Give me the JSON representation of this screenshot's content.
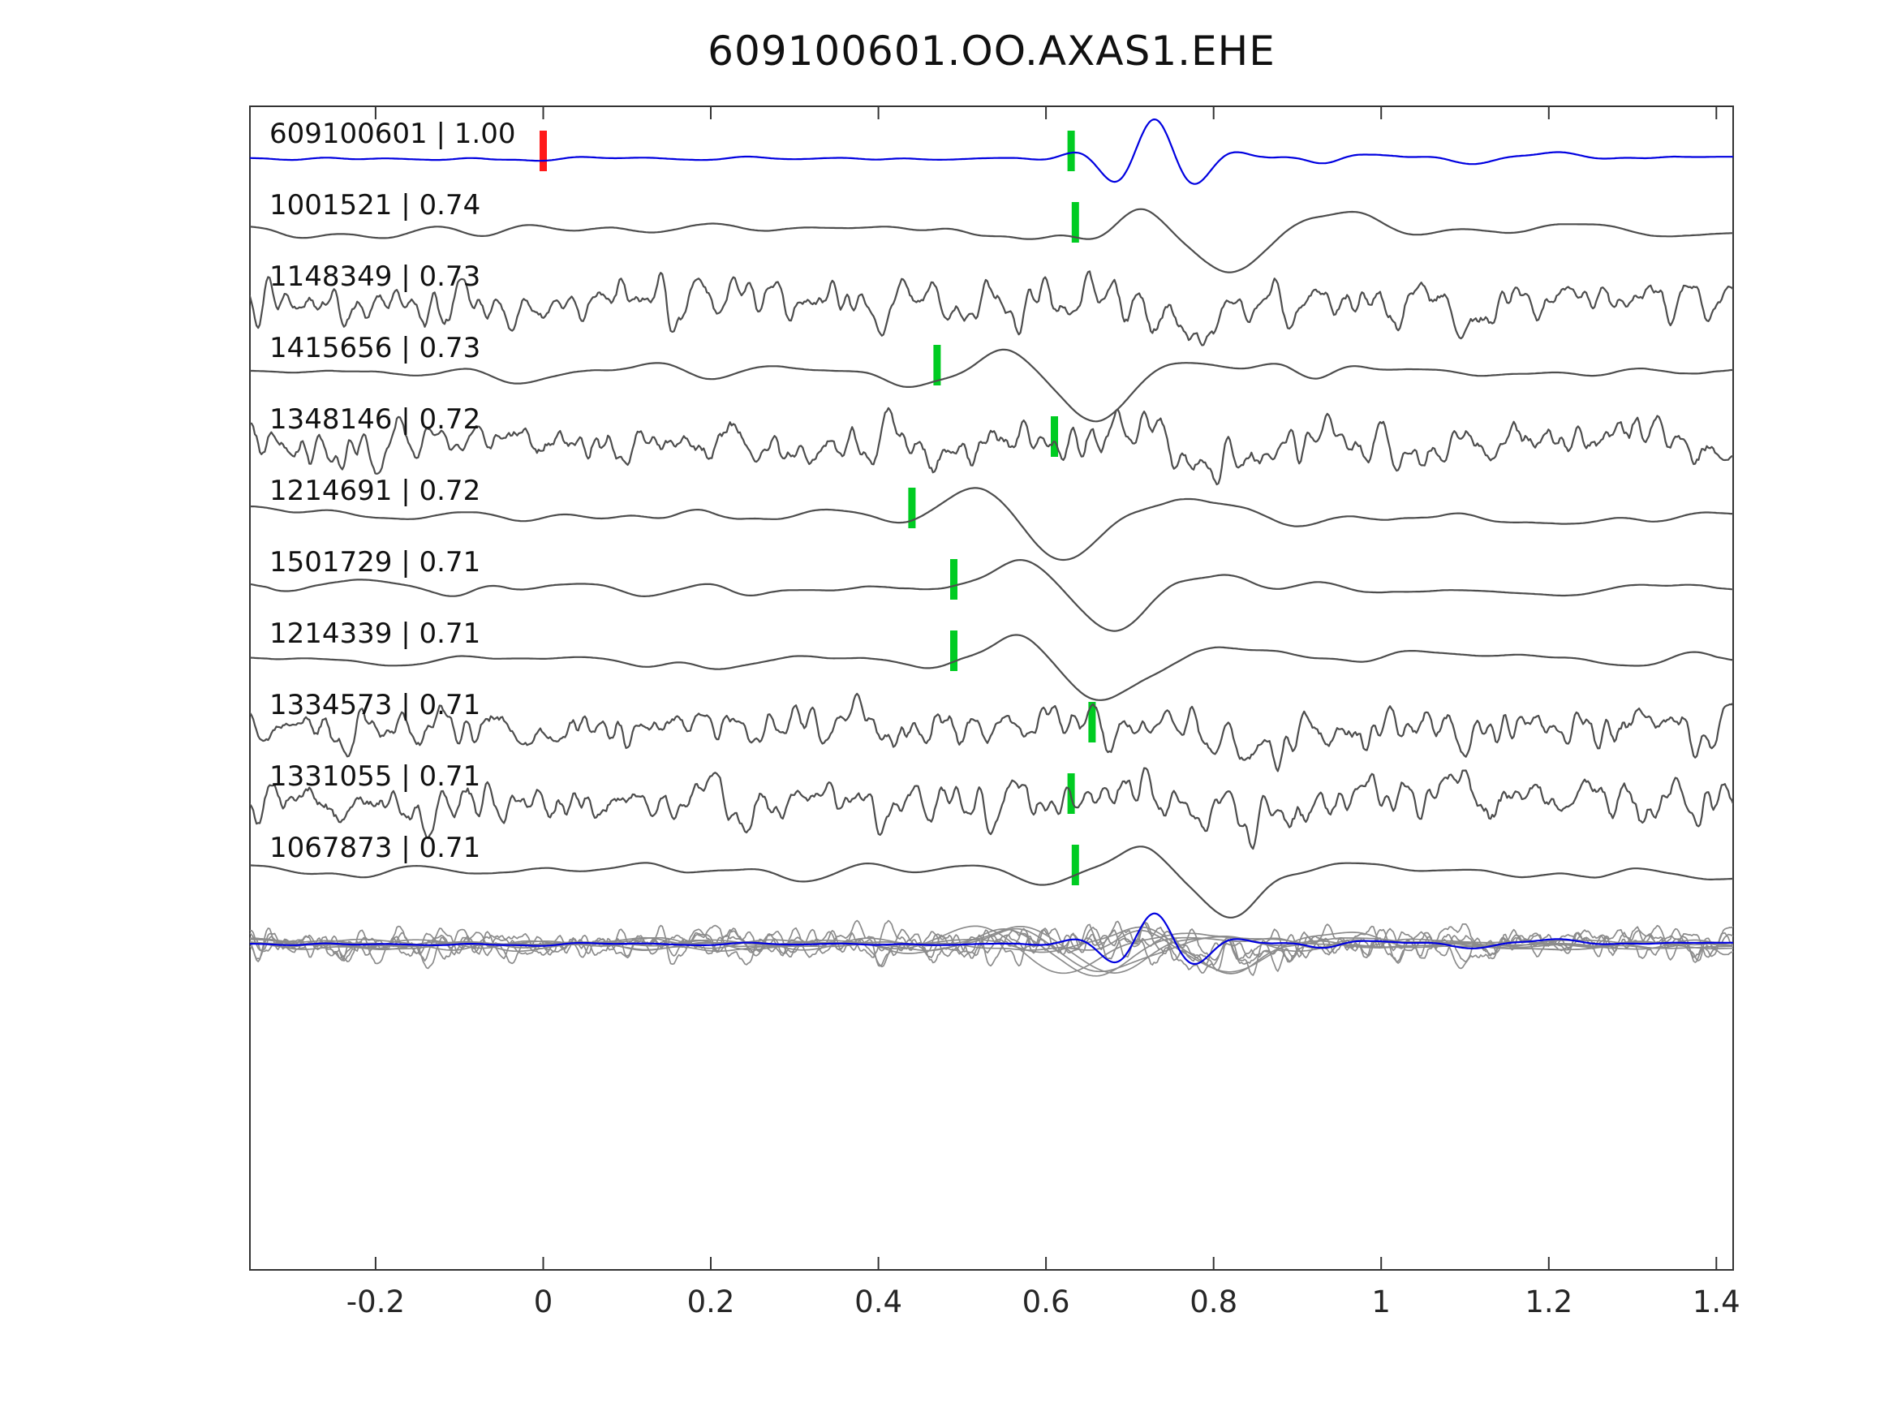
{
  "title": "609100601.OO.AXAS1.EHE",
  "chart_data": {
    "type": "line",
    "subtype": "seismic-waveform-stack",
    "title": "609100601.OO.AXAS1.EHE",
    "xlabel": "",
    "ylabel": "",
    "x_range": [
      -0.35,
      1.42
    ],
    "x_ticks": [
      -0.2,
      0,
      0.2,
      0.4,
      0.6,
      0.8,
      1,
      1.2,
      1.4
    ],
    "x_tick_labels": [
      "-0.2",
      "0",
      "0.2",
      "0.4",
      "0.6",
      "0.8",
      "1",
      "1.2",
      "1.4"
    ],
    "grid": false,
    "legend": null,
    "colors": {
      "reference_trace": "#0000e0",
      "trace": "#4d4d4d",
      "overlay_trace": "#8c8c8c",
      "pick_marker": "#00cc22",
      "reference_marker": "#ff1a1a",
      "spine": "#333333",
      "tick_label": "#262626",
      "trace_label": "#111111",
      "background": "#ffffff"
    },
    "traces": [
      {
        "label": "609100601 | 1.00",
        "event_id": "609100601",
        "correlation": 1.0,
        "role": "reference",
        "character": "reference",
        "pick": 0.63,
        "zero_marker": 0.0,
        "seed": 101
      },
      {
        "label": "1001521 | 0.74",
        "event_id": "1001521",
        "correlation": 0.74,
        "role": "match",
        "character": "smooth",
        "pick": 0.635,
        "zero_marker": null,
        "seed": 202
      },
      {
        "label": "1148349 | 0.73",
        "event_id": "1148349",
        "correlation": 0.73,
        "role": "match",
        "character": "noisy",
        "pick": null,
        "zero_marker": null,
        "seed": 303
      },
      {
        "label": "1415656 | 0.73",
        "event_id": "1415656",
        "correlation": 0.73,
        "role": "match",
        "character": "smooth",
        "pick": 0.47,
        "zero_marker": null,
        "seed": 404
      },
      {
        "label": "1348146 | 0.72",
        "event_id": "1348146",
        "correlation": 0.72,
        "role": "match",
        "character": "noisy",
        "pick": 0.61,
        "zero_marker": null,
        "seed": 505
      },
      {
        "label": "1214691 | 0.72",
        "event_id": "1214691",
        "correlation": 0.72,
        "role": "match",
        "character": "smooth",
        "pick": 0.44,
        "zero_marker": null,
        "seed": 606
      },
      {
        "label": "1501729 | 0.71",
        "event_id": "1501729",
        "correlation": 0.71,
        "role": "match",
        "character": "smooth",
        "pick": 0.49,
        "zero_marker": null,
        "seed": 707
      },
      {
        "label": "1214339 | 0.71",
        "event_id": "1214339",
        "correlation": 0.71,
        "role": "match",
        "character": "smooth",
        "pick": 0.49,
        "zero_marker": null,
        "seed": 808
      },
      {
        "label": "1334573 | 0.71",
        "event_id": "1334573",
        "correlation": 0.71,
        "role": "match",
        "character": "noisy",
        "pick": 0.655,
        "zero_marker": null,
        "seed": 909
      },
      {
        "label": "1331055 | 0.71",
        "event_id": "1331055",
        "correlation": 0.71,
        "role": "match",
        "character": "noisy",
        "pick": 0.63,
        "zero_marker": null,
        "seed": 1010
      },
      {
        "label": "1067873 | 0.71",
        "event_id": "1067873",
        "correlation": 0.71,
        "role": "match",
        "character": "smooth",
        "pick": 0.635,
        "zero_marker": null,
        "seed": 1111
      }
    ],
    "overlay_row": {
      "description": "all matched traces overlaid in gray with the reference trace in blue"
    }
  }
}
